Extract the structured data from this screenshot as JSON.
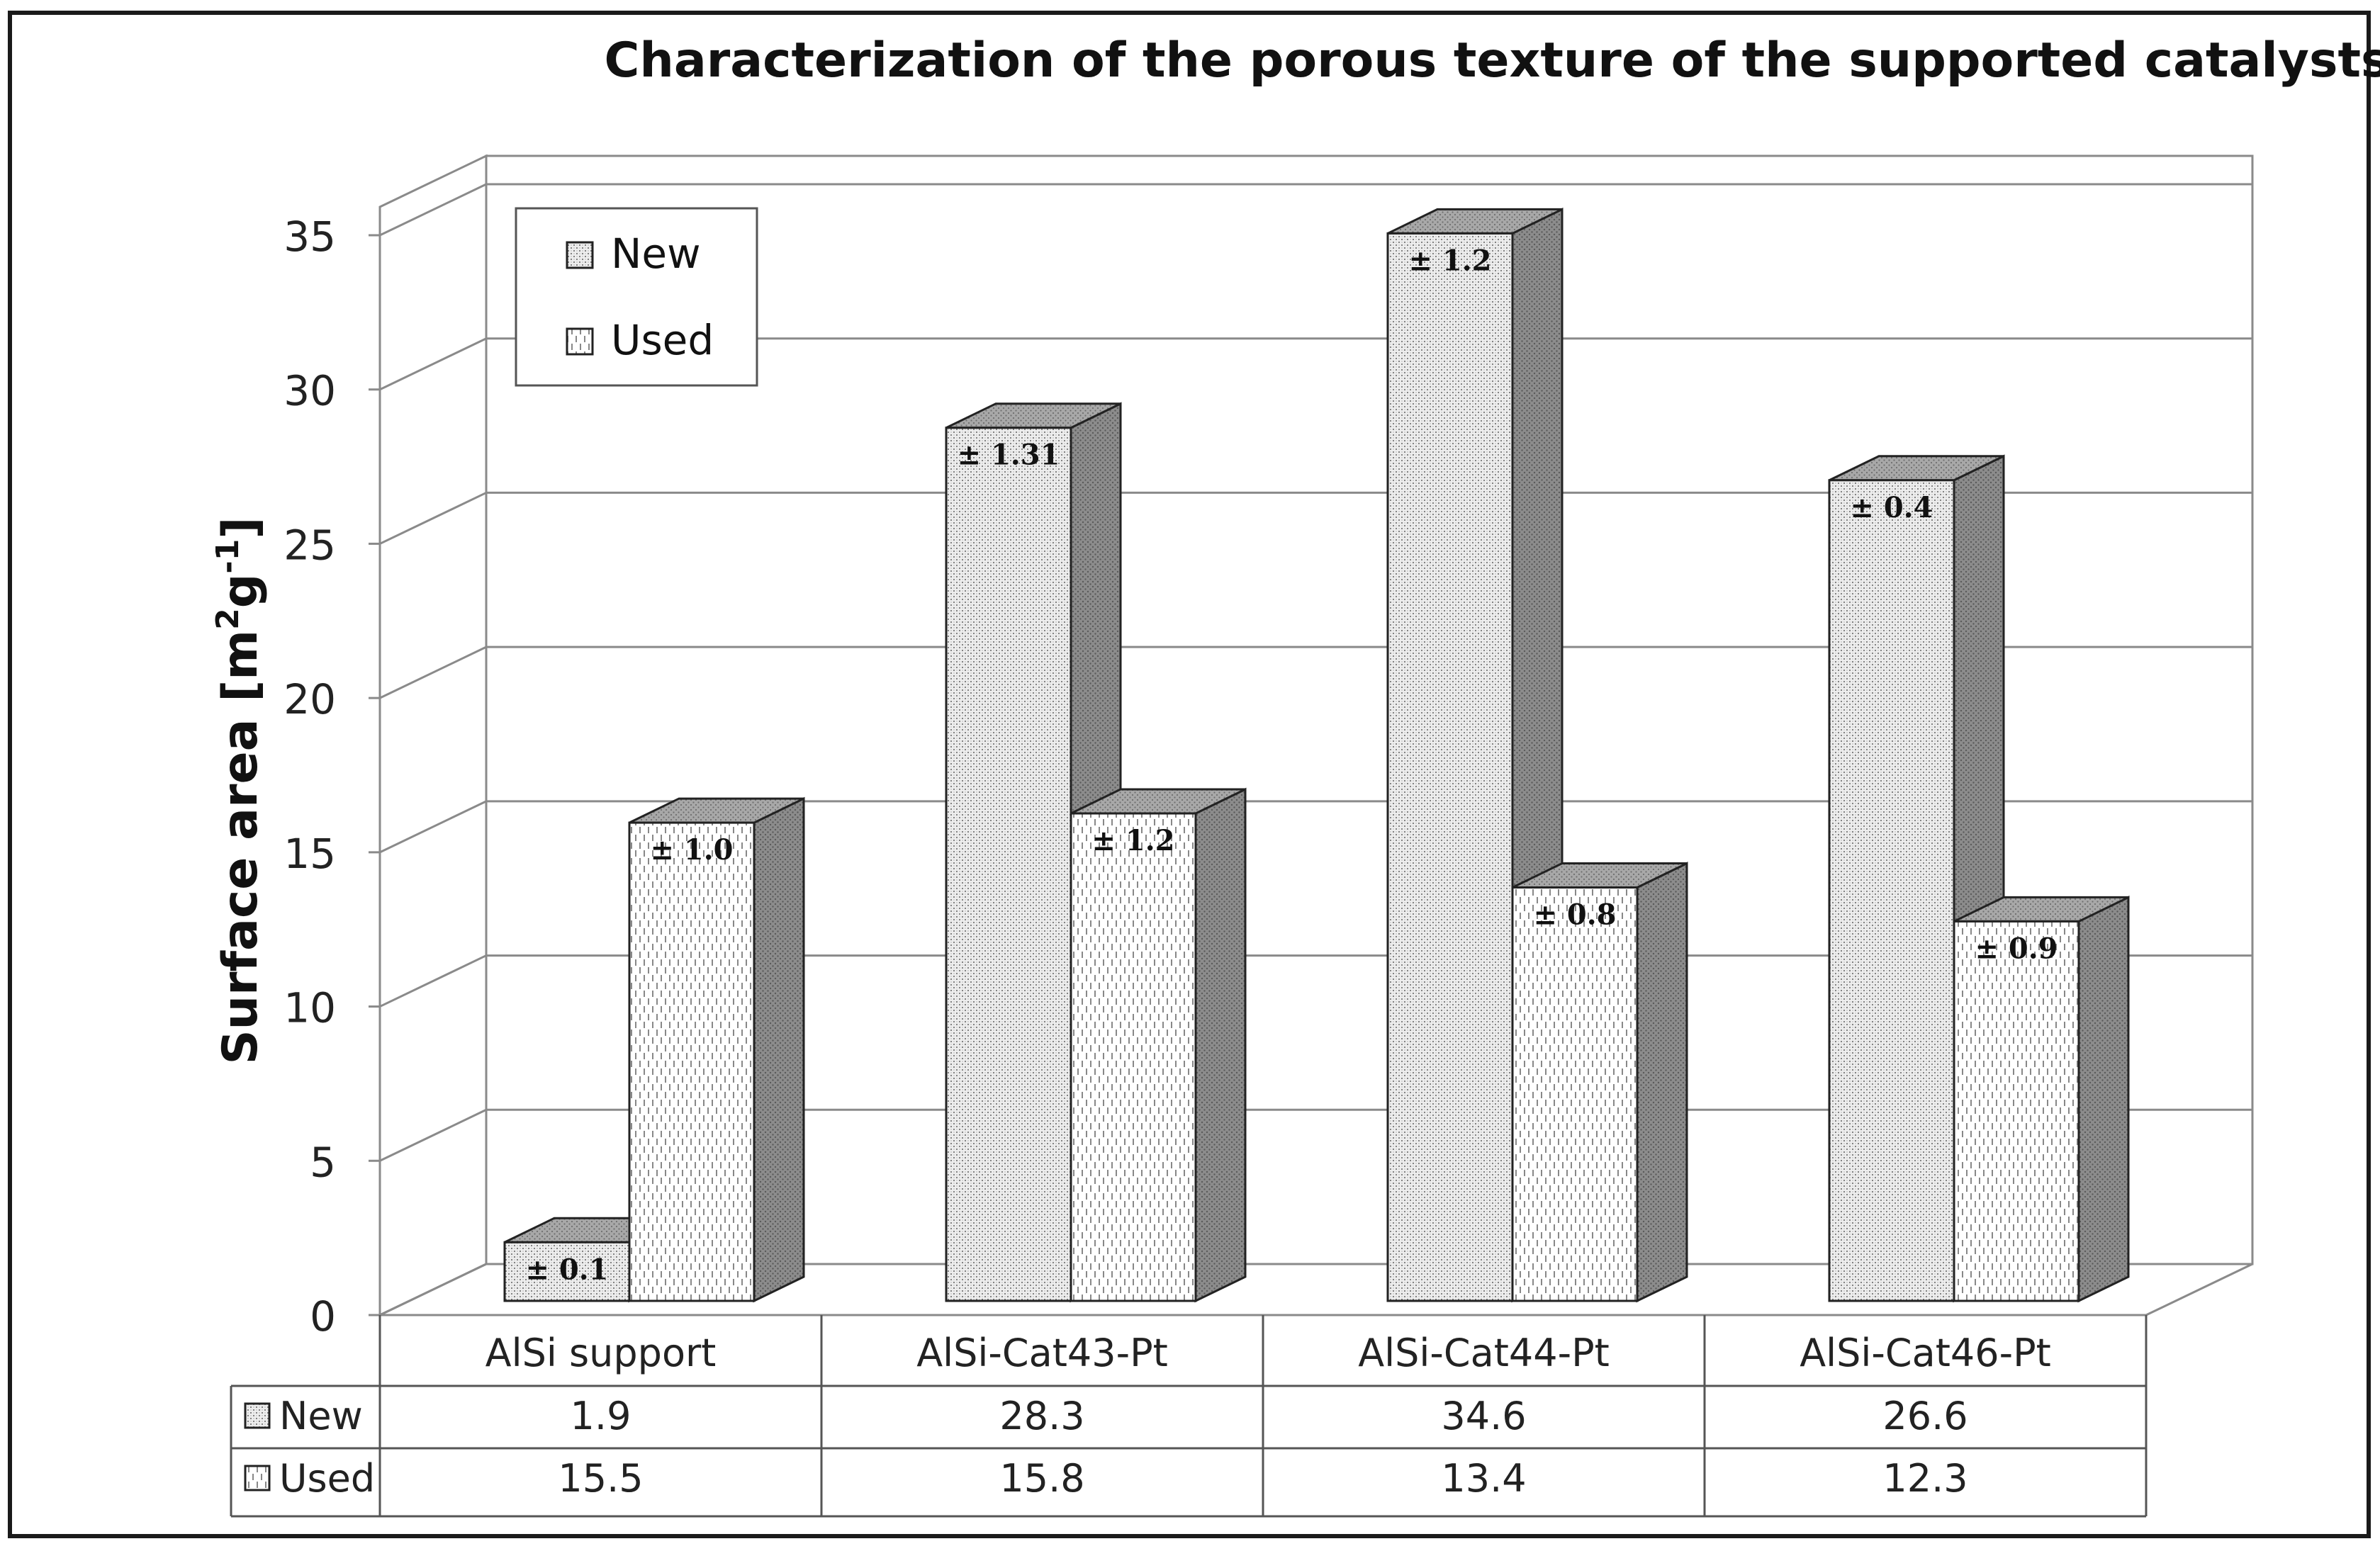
{
  "chart_data": {
    "type": "bar",
    "title": "Characterization of the porous texture of the supported catalysts",
    "ylabel": "Surface area [m",
    "ylabel_sup1": "2",
    "ylabel_mid": "g",
    "ylabel_sup2": "-1",
    "ylabel_end": "]",
    "ylim": [
      0,
      35
    ],
    "yticks": [
      "0",
      "5",
      "10",
      "15",
      "20",
      "25",
      "30",
      "35"
    ],
    "categories": [
      "AlSi support",
      "AlSi-Cat43-Pt",
      "AlSi-Cat44-Pt",
      "AlSi-Cat46-Pt"
    ],
    "series": [
      {
        "name": "New",
        "values": [
          1.9,
          28.3,
          34.6,
          26.6
        ],
        "value_labels": [
          "1.9",
          "28.3",
          "34.6",
          "26.6"
        ],
        "error_labels": [
          "± 0.1",
          "± 1.31",
          "± 1.2",
          "± 0.4"
        ]
      },
      {
        "name": "Used",
        "values": [
          15.5,
          15.8,
          13.4,
          12.3
        ],
        "value_labels": [
          "15.5",
          "15.8",
          "13.4",
          "12.3"
        ],
        "error_labels": [
          "± 1.0",
          "± 1.2",
          "± 0.8",
          "± 0.9"
        ]
      }
    ],
    "grid": true,
    "legend_position": "top-left",
    "data_table": true
  }
}
